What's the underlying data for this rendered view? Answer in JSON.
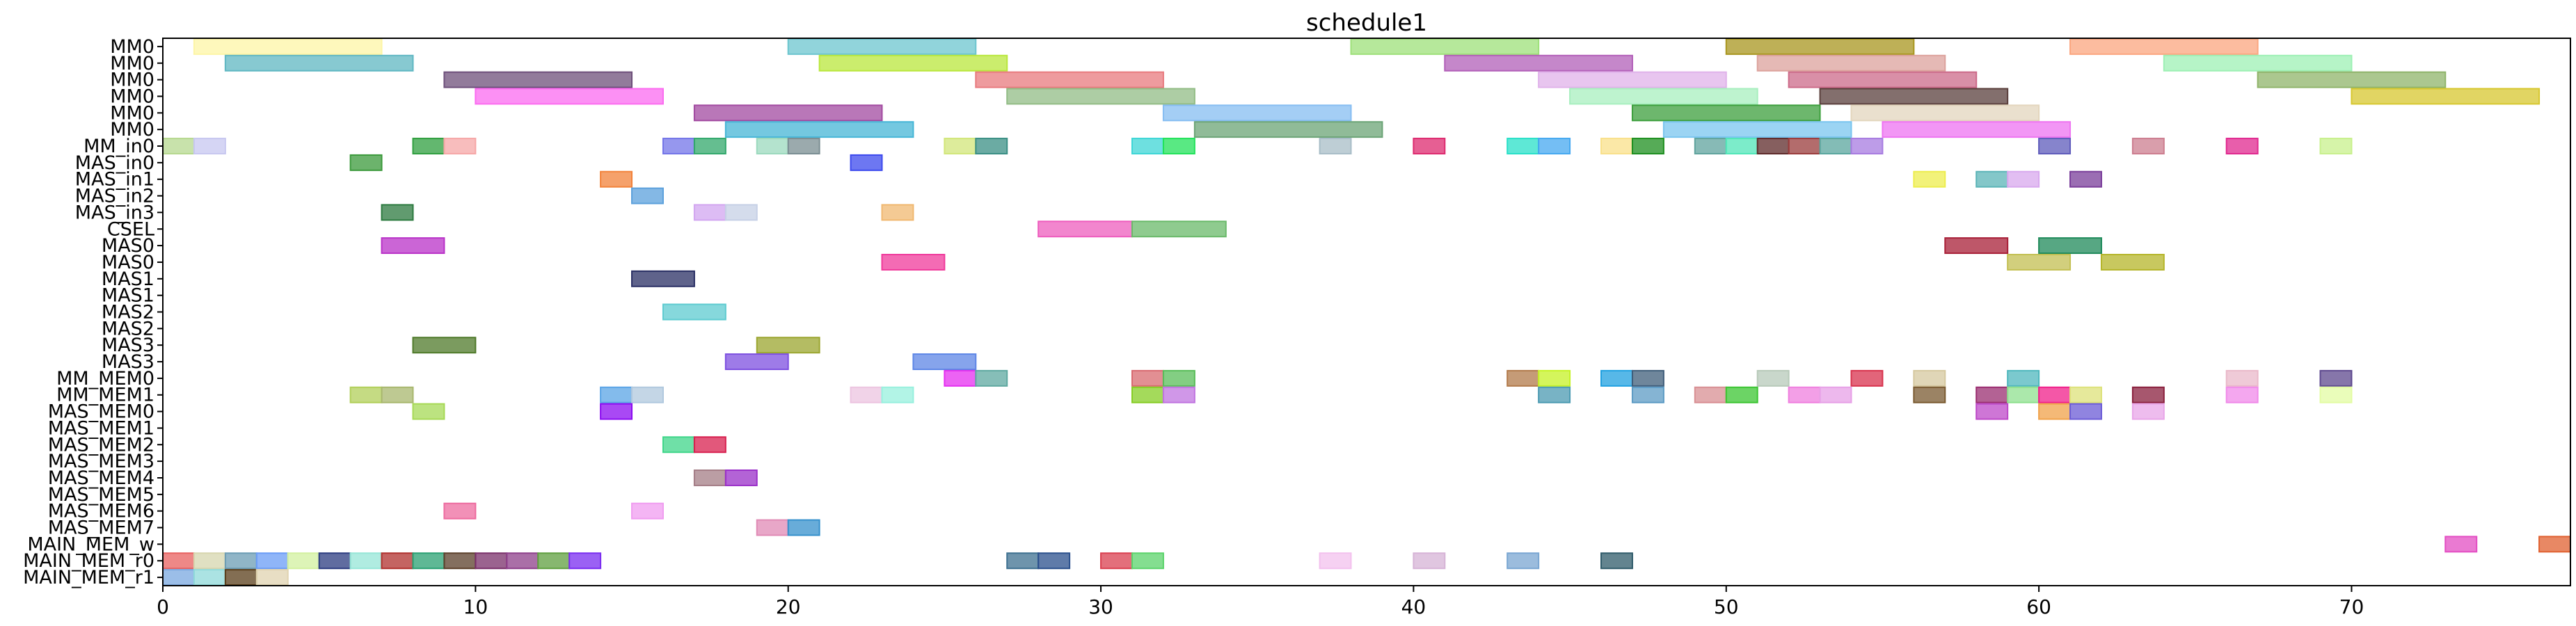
{
  "chart_data": {
    "type": "gantt",
    "title": "schedule1",
    "xlim": [
      0,
      77
    ],
    "x_ticks": [
      0,
      10,
      20,
      30,
      40,
      50,
      60,
      70
    ],
    "grid": false,
    "rows": [
      "MM0",
      "MM0",
      "MM0",
      "MM0",
      "MM0",
      "MM0",
      "MM_in0",
      "MAS_in0",
      "MAS_in1",
      "MAS_in2",
      "MAS_in3",
      "CSEL",
      "MAS0",
      "MAS0",
      "MAS1",
      "MAS1",
      "MAS2",
      "MAS2",
      "MAS3",
      "MAS3",
      "MM_MEM0",
      "MM_MEM1",
      "MAS_MEM0",
      "MAS_MEM1",
      "MAS_MEM2",
      "MAS_MEM3",
      "MAS_MEM4",
      "MAS_MEM5",
      "MAS_MEM6",
      "MAS_MEM7",
      "MAIN_MEM_w",
      "MAIN_MEM_r0",
      "MAIN_MEM_r1"
    ],
    "tasks": [
      {
        "row": 0,
        "start": 1,
        "end": 7,
        "color": "#fdf5a6"
      },
      {
        "row": 0,
        "start": 20,
        "end": 26,
        "color": "#6cc5cf"
      },
      {
        "row": 0,
        "start": 38,
        "end": 44,
        "color": "#9ee07a"
      },
      {
        "row": 0,
        "start": 50,
        "end": 56,
        "color": "#a8961f"
      },
      {
        "row": 0,
        "start": 61,
        "end": 67,
        "color": "#fba67f"
      },
      {
        "row": 1,
        "start": 2,
        "end": 8,
        "color": "#5fb7c2"
      },
      {
        "row": 1,
        "start": 21,
        "end": 27,
        "color": "#b9e73c"
      },
      {
        "row": 1,
        "start": 41,
        "end": 47,
        "color": "#b25fb8"
      },
      {
        "row": 1,
        "start": 51,
        "end": 57,
        "color": "#dca29c"
      },
      {
        "row": 1,
        "start": 64,
        "end": 70,
        "color": "#9df0b4"
      },
      {
        "row": 2,
        "start": 9,
        "end": 15,
        "color": "#6d4f7a"
      },
      {
        "row": 2,
        "start": 26,
        "end": 32,
        "color": "#e87a7e"
      },
      {
        "row": 2,
        "start": 44,
        "end": 50,
        "color": "#e0b2ea"
      },
      {
        "row": 2,
        "start": 52,
        "end": 58,
        "color": "#cc6a89"
      },
      {
        "row": 2,
        "start": 67,
        "end": 73,
        "color": "#8fb46a"
      },
      {
        "row": 3,
        "start": 10,
        "end": 16,
        "color": "#fb6bf0"
      },
      {
        "row": 3,
        "start": 27,
        "end": 33,
        "color": "#92bc85"
      },
      {
        "row": 3,
        "start": 45,
        "end": 51,
        "color": "#a8efbf"
      },
      {
        "row": 3,
        "start": 53,
        "end": 59,
        "color": "#5a3f3c"
      },
      {
        "row": 3,
        "start": 70,
        "end": 76,
        "color": "#d7c72f"
      },
      {
        "row": 4,
        "start": 17,
        "end": 23,
        "color": "#a24aa0"
      },
      {
        "row": 4,
        "start": 32,
        "end": 38,
        "color": "#86bdf2"
      },
      {
        "row": 4,
        "start": 47,
        "end": 53,
        "color": "#3c9f3c"
      },
      {
        "row": 4,
        "start": 54,
        "end": 60,
        "color": "#e3d6bd"
      },
      {
        "row": 5,
        "start": 18,
        "end": 24,
        "color": "#46b6d6"
      },
      {
        "row": 5,
        "start": 33,
        "end": 39,
        "color": "#6ba476"
      },
      {
        "row": 5,
        "start": 48,
        "end": 54,
        "color": "#79c5ef"
      },
      {
        "row": 5,
        "start": 55,
        "end": 61,
        "color": "#ee73f1"
      },
      {
        "row": 6,
        "start": 0,
        "end": 1,
        "color": "#b6d88f"
      },
      {
        "row": 6,
        "start": 1,
        "end": 2,
        "color": "#c7c7f0"
      },
      {
        "row": 6,
        "start": 8,
        "end": 9,
        "color": "#2f9f3f"
      },
      {
        "row": 6,
        "start": 9,
        "end": 10,
        "color": "#f6a7a7"
      },
      {
        "row": 6,
        "start": 16,
        "end": 17,
        "color": "#7374e8"
      },
      {
        "row": 6,
        "start": 17,
        "end": 18,
        "color": "#31a86b"
      },
      {
        "row": 6,
        "start": 19,
        "end": 20,
        "color": "#9bd9bd"
      },
      {
        "row": 6,
        "start": 20,
        "end": 21,
        "color": "#7a8d92"
      },
      {
        "row": 6,
        "start": 25,
        "end": 26,
        "color": "#d2e67a"
      },
      {
        "row": 6,
        "start": 26,
        "end": 27,
        "color": "#3a8f84"
      },
      {
        "row": 6,
        "start": 31,
        "end": 32,
        "color": "#3dd6d6"
      },
      {
        "row": 6,
        "start": 32,
        "end": 33,
        "color": "#22e25a"
      },
      {
        "row": 6,
        "start": 37,
        "end": 38,
        "color": "#a8bdc7"
      },
      {
        "row": 6,
        "start": 40,
        "end": 41,
        "color": "#dd2a6f"
      },
      {
        "row": 6,
        "start": 43,
        "end": 44,
        "color": "#28e0c8"
      },
      {
        "row": 6,
        "start": 44,
        "end": 45,
        "color": "#45a8f0"
      },
      {
        "row": 6,
        "start": 46,
        "end": 47,
        "color": "#f9e08a"
      },
      {
        "row": 6,
        "start": 47,
        "end": 48,
        "color": "#1d8f1f"
      },
      {
        "row": 6,
        "start": 49,
        "end": 50,
        "color": "#5fa39d"
      },
      {
        "row": 6,
        "start": 50,
        "end": 51,
        "color": "#50e6b8"
      },
      {
        "row": 6,
        "start": 51,
        "end": 52,
        "color": "#5e2a2a"
      },
      {
        "row": 6,
        "start": 52,
        "end": 53,
        "color": "#9a3b3b"
      },
      {
        "row": 6,
        "start": 53,
        "end": 54,
        "color": "#59a69e"
      },
      {
        "row": 6,
        "start": 54,
        "end": 55,
        "color": "#a77be0"
      },
      {
        "row": 6,
        "start": 60,
        "end": 61,
        "color": "#5e5bbb"
      },
      {
        "row": 6,
        "start": 63,
        "end": 64,
        "color": "#cc7d8f"
      },
      {
        "row": 6,
        "start": 66,
        "end": 67,
        "color": "#e0288f"
      },
      {
        "row": 6,
        "start": 69,
        "end": 70,
        "color": "#c8f08c"
      },
      {
        "row": 7,
        "start": 6,
        "end": 7,
        "color": "#3b993b"
      },
      {
        "row": 7,
        "start": 22,
        "end": 23,
        "color": "#3c49ee"
      },
      {
        "row": 8,
        "start": 14,
        "end": 15,
        "color": "#f2823a"
      },
      {
        "row": 8,
        "start": 56,
        "end": 57,
        "color": "#eded4d"
      },
      {
        "row": 8,
        "start": 58,
        "end": 59,
        "color": "#5bb4b7"
      },
      {
        "row": 8,
        "start": 59,
        "end": 60,
        "color": "#d8a8ee"
      },
      {
        "row": 8,
        "start": 61,
        "end": 62,
        "color": "#7a3d9a"
      },
      {
        "row": 9,
        "start": 15,
        "end": 16,
        "color": "#5ba0dc"
      },
      {
        "row": 10,
        "start": 7,
        "end": 8,
        "color": "#2c7a3f"
      },
      {
        "row": 10,
        "start": 17,
        "end": 18,
        "color": "#d2a6f0"
      },
      {
        "row": 10,
        "start": 18,
        "end": 19,
        "color": "#c6d0e6"
      },
      {
        "row": 10,
        "start": 23,
        "end": 24,
        "color": "#f0b870"
      },
      {
        "row": 11,
        "start": 28,
        "end": 31,
        "color": "#ee5dbe"
      },
      {
        "row": 11,
        "start": 31,
        "end": 34,
        "color": "#6ab96a"
      },
      {
        "row": 12,
        "start": 7,
        "end": 9,
        "color": "#b931c8"
      },
      {
        "row": 12,
        "start": 57,
        "end": 59,
        "color": "#a81f37"
      },
      {
        "row": 12,
        "start": 60,
        "end": 62,
        "color": "#1f8a5a"
      },
      {
        "row": 13,
        "start": 23,
        "end": 25,
        "color": "#f0399b"
      },
      {
        "row": 13,
        "start": 59,
        "end": 61,
        "color": "#c3bf52"
      },
      {
        "row": 13,
        "start": 62,
        "end": 64,
        "color": "#b5b52a"
      },
      {
        "row": 14,
        "start": 15,
        "end": 17,
        "color": "#2a2f64"
      },
      {
        "row": 16,
        "start": 16,
        "end": 18,
        "color": "#5ecbd0"
      },
      {
        "row": 18,
        "start": 8,
        "end": 10,
        "color": "#4f7a2a"
      },
      {
        "row": 18,
        "start": 19,
        "end": 21,
        "color": "#9ba62f"
      },
      {
        "row": 19,
        "start": 18,
        "end": 20,
        "color": "#7d4fe0"
      },
      {
        "row": 19,
        "start": 24,
        "end": 26,
        "color": "#5d86e6"
      },
      {
        "row": 20,
        "start": 25,
        "end": 26,
        "color": "#e52ff0"
      },
      {
        "row": 20,
        "start": 26,
        "end": 27,
        "color": "#5ea8a0"
      },
      {
        "row": 20,
        "start": 31,
        "end": 32,
        "color": "#d8696f"
      },
      {
        "row": 20,
        "start": 32,
        "end": 33,
        "color": "#59bd59"
      },
      {
        "row": 20,
        "start": 43,
        "end": 44,
        "color": "#b27a4a"
      },
      {
        "row": 20,
        "start": 44,
        "end": 45,
        "color": "#c5f226"
      },
      {
        "row": 20,
        "start": 46,
        "end": 47,
        "color": "#1fa0e0"
      },
      {
        "row": 20,
        "start": 47,
        "end": 48,
        "color": "#3f5d7a"
      },
      {
        "row": 20,
        "start": 51,
        "end": 52,
        "color": "#b7c9b9"
      },
      {
        "row": 20,
        "start": 54,
        "end": 55,
        "color": "#d8324d"
      },
      {
        "row": 20,
        "start": 56,
        "end": 57,
        "color": "#d5c89f"
      },
      {
        "row": 20,
        "start": 59,
        "end": 60,
        "color": "#4fb7bd"
      },
      {
        "row": 20,
        "start": 66,
        "end": 67,
        "color": "#e9b8c9"
      },
      {
        "row": 20,
        "start": 69,
        "end": 70,
        "color": "#5d488e"
      },
      {
        "row": 21,
        "start": 6,
        "end": 7,
        "color": "#b1cf59"
      },
      {
        "row": 21,
        "start": 7,
        "end": 8,
        "color": "#a8b76e"
      },
      {
        "row": 21,
        "start": 14,
        "end": 15,
        "color": "#5aa4e6"
      },
      {
        "row": 21,
        "start": 15,
        "end": 16,
        "color": "#b0c8de"
      },
      {
        "row": 21,
        "start": 22,
        "end": 23,
        "color": "#ecc4e0"
      },
      {
        "row": 21,
        "start": 23,
        "end": 24,
        "color": "#98f0de"
      },
      {
        "row": 21,
        "start": 31,
        "end": 32,
        "color": "#86cd24"
      },
      {
        "row": 21,
        "start": 32,
        "end": 33,
        "color": "#c074e0"
      },
      {
        "row": 21,
        "start": 44,
        "end": 45,
        "color": "#4b9ab2"
      },
      {
        "row": 21,
        "start": 47,
        "end": 48,
        "color": "#5c9bc4"
      },
      {
        "row": 21,
        "start": 49,
        "end": 50,
        "color": "#d88f93"
      },
      {
        "row": 21,
        "start": 50,
        "end": 51,
        "color": "#3bc532"
      },
      {
        "row": 21,
        "start": 52,
        "end": 53,
        "color": "#ef7fdf"
      },
      {
        "row": 21,
        "start": 53,
        "end": 54,
        "color": "#e7a0e7"
      },
      {
        "row": 21,
        "start": 56,
        "end": 57,
        "color": "#7a5a30"
      },
      {
        "row": 21,
        "start": 58,
        "end": 59,
        "color": "#9a2d70"
      },
      {
        "row": 21,
        "start": 59,
        "end": 60,
        "color": "#8fe08f"
      },
      {
        "row": 21,
        "start": 60,
        "end": 61,
        "color": "#f01f8a"
      },
      {
        "row": 21,
        "start": 61,
        "end": 62,
        "color": "#dde27a"
      },
      {
        "row": 21,
        "start": 63,
        "end": 64,
        "color": "#8a1f3d"
      },
      {
        "row": 21,
        "start": 66,
        "end": 67,
        "color": "#f08ae9"
      },
      {
        "row": 21,
        "start": 69,
        "end": 70,
        "color": "#e3fca3"
      },
      {
        "row": 22,
        "start": 8,
        "end": 9,
        "color": "#a6d955"
      },
      {
        "row": 22,
        "start": 14,
        "end": 15,
        "color": "#8c0cf0"
      },
      {
        "row": 22,
        "start": 58,
        "end": 59,
        "color": "#bd48c8"
      },
      {
        "row": 22,
        "start": 60,
        "end": 61,
        "color": "#f0a24a"
      },
      {
        "row": 22,
        "start": 61,
        "end": 62,
        "color": "#6b5bd6"
      },
      {
        "row": 22,
        "start": 63,
        "end": 64,
        "color": "#e8a5e8"
      },
      {
        "row": 24,
        "start": 16,
        "end": 17,
        "color": "#3fd68a"
      },
      {
        "row": 24,
        "start": 17,
        "end": 18,
        "color": "#d8204f"
      },
      {
        "row": 26,
        "start": 17,
        "end": 18,
        "color": "#a47d86"
      },
      {
        "row": 26,
        "start": 18,
        "end": 19,
        "color": "#9a2fc8"
      },
      {
        "row": 28,
        "start": 9,
        "end": 10,
        "color": "#ed6b9f"
      },
      {
        "row": 28,
        "start": 15,
        "end": 16,
        "color": "#f09cf0"
      },
      {
        "row": 29,
        "start": 19,
        "end": 20,
        "color": "#e08ab5"
      },
      {
        "row": 29,
        "start": 20,
        "end": 21,
        "color": "#3590cc"
      },
      {
        "row": 30,
        "start": 73,
        "end": 74,
        "color": "#e34ec3"
      },
      {
        "row": 30,
        "start": 76,
        "end": 77,
        "color": "#e06030"
      },
      {
        "row": 31,
        "start": 0,
        "end": 1,
        "color": "#e8605f"
      },
      {
        "row": 31,
        "start": 1,
        "end": 2,
        "color": "#d6d5ae"
      },
      {
        "row": 31,
        "start": 2,
        "end": 3,
        "color": "#6b9cb4"
      },
      {
        "row": 31,
        "start": 3,
        "end": 4,
        "color": "#6a9cf6"
      },
      {
        "row": 31,
        "start": 4,
        "end": 5,
        "color": "#d2f09f"
      },
      {
        "row": 31,
        "start": 5,
        "end": 6,
        "color": "#2b3b80"
      },
      {
        "row": 31,
        "start": 6,
        "end": 7,
        "color": "#96e6d7"
      },
      {
        "row": 31,
        "start": 7,
        "end": 8,
        "color": "#b0302d"
      },
      {
        "row": 31,
        "start": 8,
        "end": 9,
        "color": "#29a072"
      },
      {
        "row": 31,
        "start": 9,
        "end": 10,
        "color": "#5b3f2a"
      },
      {
        "row": 31,
        "start": 10,
        "end": 11,
        "color": "#7a2f6a"
      },
      {
        "row": 31,
        "start": 11,
        "end": 12,
        "color": "#8d3f8a"
      },
      {
        "row": 31,
        "start": 12,
        "end": 13,
        "color": "#5f9f3f"
      },
      {
        "row": 31,
        "start": 13,
        "end": 14,
        "color": "#7a2cf0"
      },
      {
        "row": 31,
        "start": 27,
        "end": 28,
        "color": "#3d7090"
      },
      {
        "row": 31,
        "start": 28,
        "end": 29,
        "color": "#2a4f8c"
      },
      {
        "row": 31,
        "start": 30,
        "end": 31,
        "color": "#da3f4f"
      },
      {
        "row": 31,
        "start": 31,
        "end": 32,
        "color": "#5bd36b"
      },
      {
        "row": 31,
        "start": 37,
        "end": 38,
        "color": "#f3c1ee"
      },
      {
        "row": 31,
        "start": 40,
        "end": 41,
        "color": "#d6b3d6"
      },
      {
        "row": 31,
        "start": 43,
        "end": 44,
        "color": "#79a6d2"
      },
      {
        "row": 31,
        "start": 46,
        "end": 47,
        "color": "#2f5b6a"
      },
      {
        "row": 32,
        "start": 0,
        "end": 1,
        "color": "#7aa8e0"
      },
      {
        "row": 32,
        "start": 1,
        "end": 2,
        "color": "#8fdada"
      },
      {
        "row": 32,
        "start": 2,
        "end": 3,
        "color": "#5a3d1a"
      },
      {
        "row": 32,
        "start": 3,
        "end": 4,
        "color": "#e0d3b0"
      }
    ]
  }
}
